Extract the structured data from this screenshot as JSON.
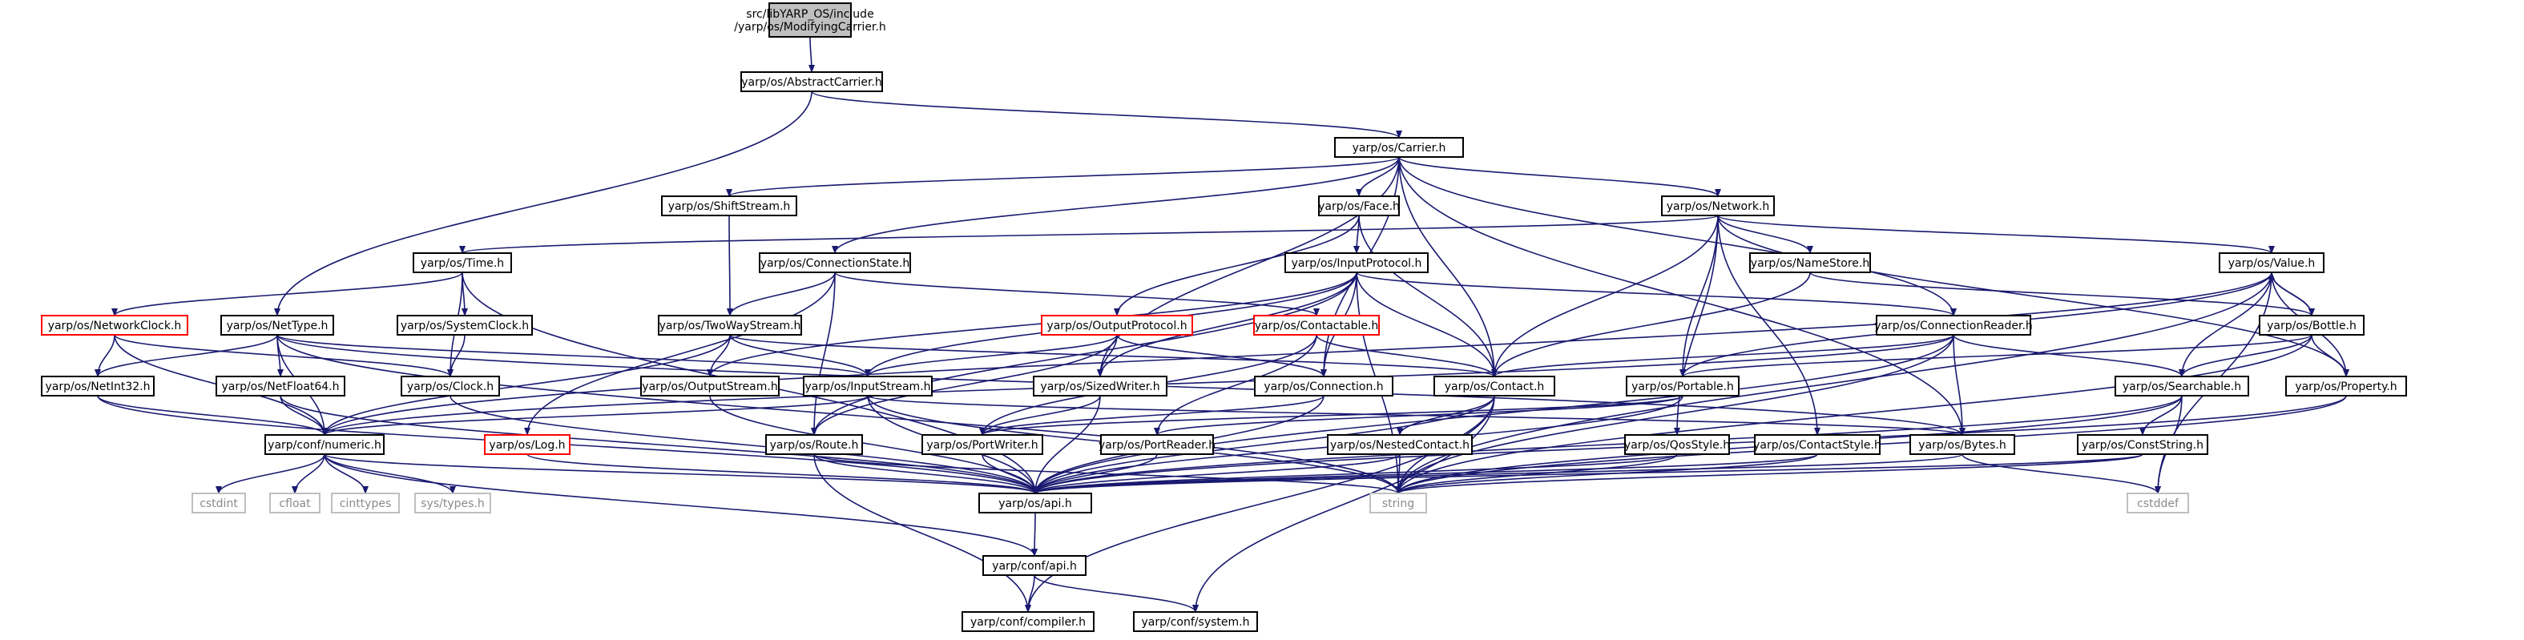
{
  "graph": {
    "colors": {
      "edge": "#191970",
      "missing": "#ff0000",
      "ext": "#bfbfbf",
      "focus": "#bfbfbf"
    },
    "nodes": [
      {
        "id": "root",
        "kind": "focus",
        "lines": [
          "src/libYARP_OS/include",
          "/yarp/os/ModifyingCarrier.h"
        ]
      },
      {
        "id": "abstractcarrier",
        "kind": "normal",
        "lines": [
          "yarp/os/AbstractCarrier.h"
        ]
      },
      {
        "id": "carrier",
        "kind": "normal",
        "lines": [
          "yarp/os/Carrier.h"
        ]
      },
      {
        "id": "shiftstream",
        "kind": "normal",
        "lines": [
          "yarp/os/ShiftStream.h"
        ]
      },
      {
        "id": "face",
        "kind": "normal",
        "lines": [
          "yarp/os/Face.h"
        ]
      },
      {
        "id": "network",
        "kind": "normal",
        "lines": [
          "yarp/os/Network.h"
        ]
      },
      {
        "id": "time",
        "kind": "normal",
        "lines": [
          "yarp/os/Time.h"
        ]
      },
      {
        "id": "connectionstate",
        "kind": "normal",
        "lines": [
          "yarp/os/ConnectionState.h"
        ]
      },
      {
        "id": "inputprotocol",
        "kind": "normal",
        "lines": [
          "yarp/os/InputProtocol.h"
        ]
      },
      {
        "id": "namestore",
        "kind": "normal",
        "lines": [
          "yarp/os/NameStore.h"
        ]
      },
      {
        "id": "value",
        "kind": "normal",
        "lines": [
          "yarp/os/Value.h"
        ]
      },
      {
        "id": "networkclock",
        "kind": "missing",
        "lines": [
          "yarp/os/NetworkClock.h"
        ]
      },
      {
        "id": "nettype",
        "kind": "normal",
        "lines": [
          "yarp/os/NetType.h"
        ]
      },
      {
        "id": "systemclock",
        "kind": "normal",
        "lines": [
          "yarp/os/SystemClock.h"
        ]
      },
      {
        "id": "twowaystream",
        "kind": "normal",
        "lines": [
          "yarp/os/TwoWayStream.h"
        ]
      },
      {
        "id": "outputprotocol",
        "kind": "missing",
        "lines": [
          "yarp/os/OutputProtocol.h"
        ]
      },
      {
        "id": "contactable",
        "kind": "missing",
        "lines": [
          "yarp/os/Contactable.h"
        ]
      },
      {
        "id": "connectionreader",
        "kind": "normal",
        "lines": [
          "yarp/os/ConnectionReader.h"
        ]
      },
      {
        "id": "bottle",
        "kind": "normal",
        "lines": [
          "yarp/os/Bottle.h"
        ]
      },
      {
        "id": "netint32",
        "kind": "normal",
        "lines": [
          "yarp/os/NetInt32.h"
        ]
      },
      {
        "id": "netfloat64",
        "kind": "normal",
        "lines": [
          "yarp/os/NetFloat64.h"
        ]
      },
      {
        "id": "clock",
        "kind": "normal",
        "lines": [
          "yarp/os/Clock.h"
        ]
      },
      {
        "id": "outputstream",
        "kind": "normal",
        "lines": [
          "yarp/os/OutputStream.h"
        ]
      },
      {
        "id": "inputstream",
        "kind": "normal",
        "lines": [
          "yarp/os/InputStream.h"
        ]
      },
      {
        "id": "sizedwriter",
        "kind": "normal",
        "lines": [
          "yarp/os/SizedWriter.h"
        ]
      },
      {
        "id": "connection",
        "kind": "normal",
        "lines": [
          "yarp/os/Connection.h"
        ]
      },
      {
        "id": "contact",
        "kind": "normal",
        "lines": [
          "yarp/os/Contact.h"
        ]
      },
      {
        "id": "portable",
        "kind": "normal",
        "lines": [
          "yarp/os/Portable.h"
        ]
      },
      {
        "id": "searchable",
        "kind": "normal",
        "lines": [
          "yarp/os/Searchable.h"
        ]
      },
      {
        "id": "property",
        "kind": "normal",
        "lines": [
          "yarp/os/Property.h"
        ]
      },
      {
        "id": "numeric",
        "kind": "normal",
        "lines": [
          "yarp/conf/numeric.h"
        ]
      },
      {
        "id": "log",
        "kind": "missing",
        "lines": [
          "yarp/os/Log.h"
        ]
      },
      {
        "id": "route",
        "kind": "normal",
        "lines": [
          "yarp/os/Route.h"
        ]
      },
      {
        "id": "portwriter",
        "kind": "normal",
        "lines": [
          "yarp/os/PortWriter.h"
        ]
      },
      {
        "id": "portreader",
        "kind": "normal",
        "lines": [
          "yarp/os/PortReader.h"
        ]
      },
      {
        "id": "nestedcontact",
        "kind": "normal",
        "lines": [
          "yarp/os/NestedContact.h"
        ]
      },
      {
        "id": "qosstyle",
        "kind": "normal",
        "lines": [
          "yarp/os/QosStyle.h"
        ]
      },
      {
        "id": "contactstyle",
        "kind": "normal",
        "lines": [
          "yarp/os/ContactStyle.h"
        ]
      },
      {
        "id": "bytes",
        "kind": "normal",
        "lines": [
          "yarp/os/Bytes.h"
        ]
      },
      {
        "id": "conststring",
        "kind": "normal",
        "lines": [
          "yarp/os/ConstString.h"
        ]
      },
      {
        "id": "cstdint",
        "kind": "ext",
        "lines": [
          "cstdint"
        ]
      },
      {
        "id": "cfloat",
        "kind": "ext",
        "lines": [
          "cfloat"
        ]
      },
      {
        "id": "cinttypes",
        "kind": "ext",
        "lines": [
          "cinttypes"
        ]
      },
      {
        "id": "systypes",
        "kind": "ext",
        "lines": [
          "sys/types.h"
        ]
      },
      {
        "id": "api",
        "kind": "normal",
        "lines": [
          "yarp/os/api.h"
        ]
      },
      {
        "id": "string",
        "kind": "ext",
        "lines": [
          "string"
        ]
      },
      {
        "id": "cstddef",
        "kind": "ext",
        "lines": [
          "cstddef"
        ]
      },
      {
        "id": "confapi",
        "kind": "normal",
        "lines": [
          "yarp/conf/api.h"
        ]
      },
      {
        "id": "compiler",
        "kind": "normal",
        "lines": [
          "yarp/conf/compiler.h"
        ]
      },
      {
        "id": "system",
        "kind": "normal",
        "lines": [
          "yarp/conf/system.h"
        ]
      }
    ],
    "edges": [
      [
        "root",
        "abstractcarrier"
      ],
      [
        "abstractcarrier",
        "carrier"
      ],
      [
        "abstractcarrier",
        "nettype"
      ],
      [
        "carrier",
        "shiftstream"
      ],
      [
        "carrier",
        "face"
      ],
      [
        "carrier",
        "network"
      ],
      [
        "carrier",
        "connectionstate"
      ],
      [
        "carrier",
        "sizedwriter"
      ],
      [
        "carrier",
        "contact"
      ],
      [
        "carrier",
        "connection"
      ],
      [
        "carrier",
        "connectionreader"
      ],
      [
        "carrier",
        "bytes"
      ],
      [
        "shiftstream",
        "twowaystream"
      ],
      [
        "face",
        "inputprotocol"
      ],
      [
        "face",
        "outputprotocol"
      ],
      [
        "face",
        "contact"
      ],
      [
        "network",
        "time"
      ],
      [
        "network",
        "namestore"
      ],
      [
        "network",
        "value"
      ],
      [
        "network",
        "property"
      ],
      [
        "network",
        "contact"
      ],
      [
        "network",
        "portable"
      ],
      [
        "network",
        "qosstyle"
      ],
      [
        "network",
        "contactstyle"
      ],
      [
        "time",
        "networkclock"
      ],
      [
        "time",
        "systemclock"
      ],
      [
        "time",
        "clock"
      ],
      [
        "time",
        "api"
      ],
      [
        "connectionstate",
        "twowaystream"
      ],
      [
        "connectionstate",
        "contactable"
      ],
      [
        "connectionstate",
        "route"
      ],
      [
        "connectionstate",
        "log"
      ],
      [
        "inputprotocol",
        "inputstream"
      ],
      [
        "inputprotocol",
        "outputstream"
      ],
      [
        "inputprotocol",
        "sizedwriter"
      ],
      [
        "inputprotocol",
        "connection"
      ],
      [
        "inputprotocol",
        "contact"
      ],
      [
        "inputprotocol",
        "connectionreader"
      ],
      [
        "inputprotocol",
        "route"
      ],
      [
        "inputprotocol",
        "string"
      ],
      [
        "namestore",
        "contact"
      ],
      [
        "namestore",
        "bottle"
      ],
      [
        "value",
        "bottle"
      ],
      [
        "value",
        "searchable"
      ],
      [
        "value",
        "portable"
      ],
      [
        "value",
        "property"
      ],
      [
        "value",
        "string"
      ],
      [
        "value",
        "cstddef"
      ],
      [
        "value",
        "numeric"
      ],
      [
        "networkclock",
        "clock"
      ],
      [
        "networkclock",
        "netint32"
      ],
      [
        "networkclock",
        "numeric"
      ],
      [
        "nettype",
        "netint32"
      ],
      [
        "nettype",
        "netfloat64"
      ],
      [
        "nettype",
        "numeric"
      ],
      [
        "nettype",
        "inputstream"
      ],
      [
        "nettype",
        "bytes"
      ],
      [
        "nettype",
        "string"
      ],
      [
        "systemclock",
        "clock"
      ],
      [
        "twowaystream",
        "inputstream"
      ],
      [
        "twowaystream",
        "outputstream"
      ],
      [
        "twowaystream",
        "contact"
      ],
      [
        "twowaystream",
        "numeric"
      ],
      [
        "outputprotocol",
        "sizedwriter"
      ],
      [
        "outputprotocol",
        "inputstream"
      ],
      [
        "outputprotocol",
        "connection"
      ],
      [
        "outputprotocol",
        "route"
      ],
      [
        "contactable",
        "contact"
      ],
      [
        "contactable",
        "portreader"
      ],
      [
        "contactable",
        "portwriter"
      ],
      [
        "connectionreader",
        "contact"
      ],
      [
        "connectionreader",
        "bytes"
      ],
      [
        "connectionreader",
        "searchable"
      ],
      [
        "connectionreader",
        "numeric"
      ],
      [
        "connectionreader",
        "api"
      ],
      [
        "connectionreader",
        "string"
      ],
      [
        "bottle",
        "value"
      ],
      [
        "bottle",
        "searchable"
      ],
      [
        "bottle",
        "property"
      ],
      [
        "bottle",
        "portable"
      ],
      [
        "bottle",
        "string"
      ],
      [
        "netint32",
        "numeric"
      ],
      [
        "netint32",
        "api"
      ],
      [
        "netfloat64",
        "numeric"
      ],
      [
        "netfloat64",
        "api"
      ],
      [
        "clock",
        "api"
      ],
      [
        "outputstream",
        "api"
      ],
      [
        "inputstream",
        "api"
      ],
      [
        "inputstream",
        "numeric"
      ],
      [
        "inputstream",
        "bytes"
      ],
      [
        "inputstream",
        "string"
      ],
      [
        "sizedwriter",
        "portwriter"
      ],
      [
        "sizedwriter",
        "api"
      ],
      [
        "connection",
        "api"
      ],
      [
        "connection",
        "portwriter"
      ],
      [
        "contact",
        "nestedcontact"
      ],
      [
        "contact",
        "api"
      ],
      [
        "contact",
        "string"
      ],
      [
        "contact",
        "compiler"
      ],
      [
        "contact",
        "system"
      ],
      [
        "portable",
        "portreader"
      ],
      [
        "portable",
        "portwriter"
      ],
      [
        "portable",
        "api"
      ],
      [
        "searchable",
        "conststring"
      ],
      [
        "searchable",
        "api"
      ],
      [
        "searchable",
        "string"
      ],
      [
        "searchable",
        "cstddef"
      ],
      [
        "property",
        "api"
      ],
      [
        "property",
        "string"
      ],
      [
        "numeric",
        "cstdint"
      ],
      [
        "numeric",
        "cfloat"
      ],
      [
        "numeric",
        "cinttypes"
      ],
      [
        "numeric",
        "systypes"
      ],
      [
        "numeric",
        "confapi"
      ],
      [
        "numeric",
        "api"
      ],
      [
        "log",
        "api"
      ],
      [
        "route",
        "api"
      ],
      [
        "route",
        "compiler"
      ],
      [
        "route",
        "string"
      ],
      [
        "portwriter",
        "api"
      ],
      [
        "portreader",
        "api"
      ],
      [
        "nestedcontact",
        "api"
      ],
      [
        "nestedcontact",
        "string"
      ],
      [
        "qosstyle",
        "api"
      ],
      [
        "qosstyle",
        "string"
      ],
      [
        "contactstyle",
        "api"
      ],
      [
        "contactstyle",
        "string"
      ],
      [
        "bytes",
        "api"
      ],
      [
        "bytes",
        "cstddef"
      ],
      [
        "conststring",
        "api"
      ],
      [
        "conststring",
        "string"
      ],
      [
        "api",
        "confapi"
      ],
      [
        "confapi",
        "compiler"
      ],
      [
        "confapi",
        "system"
      ]
    ]
  }
}
